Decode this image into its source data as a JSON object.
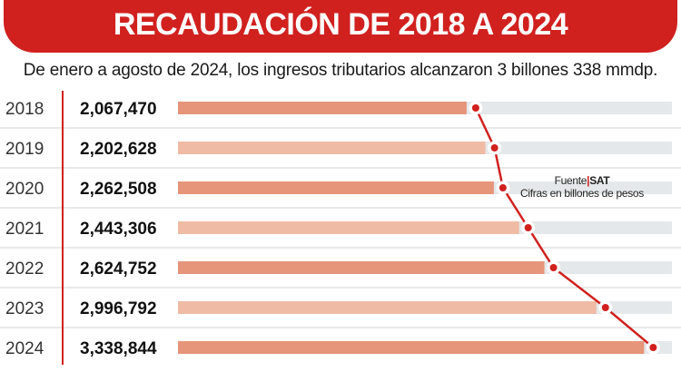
{
  "title": "RECAUDACIÓN DE 2018 A 2024",
  "subtitle": "De enero a agosto de 2024, los ingresos tributarios alcanzaron 3 billones 338 mmdp.",
  "source": {
    "label": "Fuente",
    "name": "SAT",
    "note": "Cifras en billones de pesos"
  },
  "colors": {
    "accent": "#d0211f",
    "bar_dark": "#e6957a",
    "bar_light": "#efbba5",
    "track": "#e5e8ea",
    "divider": "#cfd3d6"
  },
  "chart_data": {
    "type": "bar",
    "orientation": "horizontal",
    "categories": [
      "2018",
      "2019",
      "2020",
      "2021",
      "2022",
      "2023",
      "2024"
    ],
    "values": [
      2067470,
      2202628,
      2262508,
      2443306,
      2624752,
      2996792,
      3338844
    ],
    "value_labels": [
      "2,067,470",
      "2,202,628",
      "2,262,508",
      "2,443,306",
      "2,624,752",
      "2,996,792",
      "3,338,844"
    ],
    "xlim": [
      0,
      3538000
    ],
    "title": "RECAUDACIÓN DE 2018 A 2024",
    "overlay": "line connecting bar ends with red markers"
  }
}
